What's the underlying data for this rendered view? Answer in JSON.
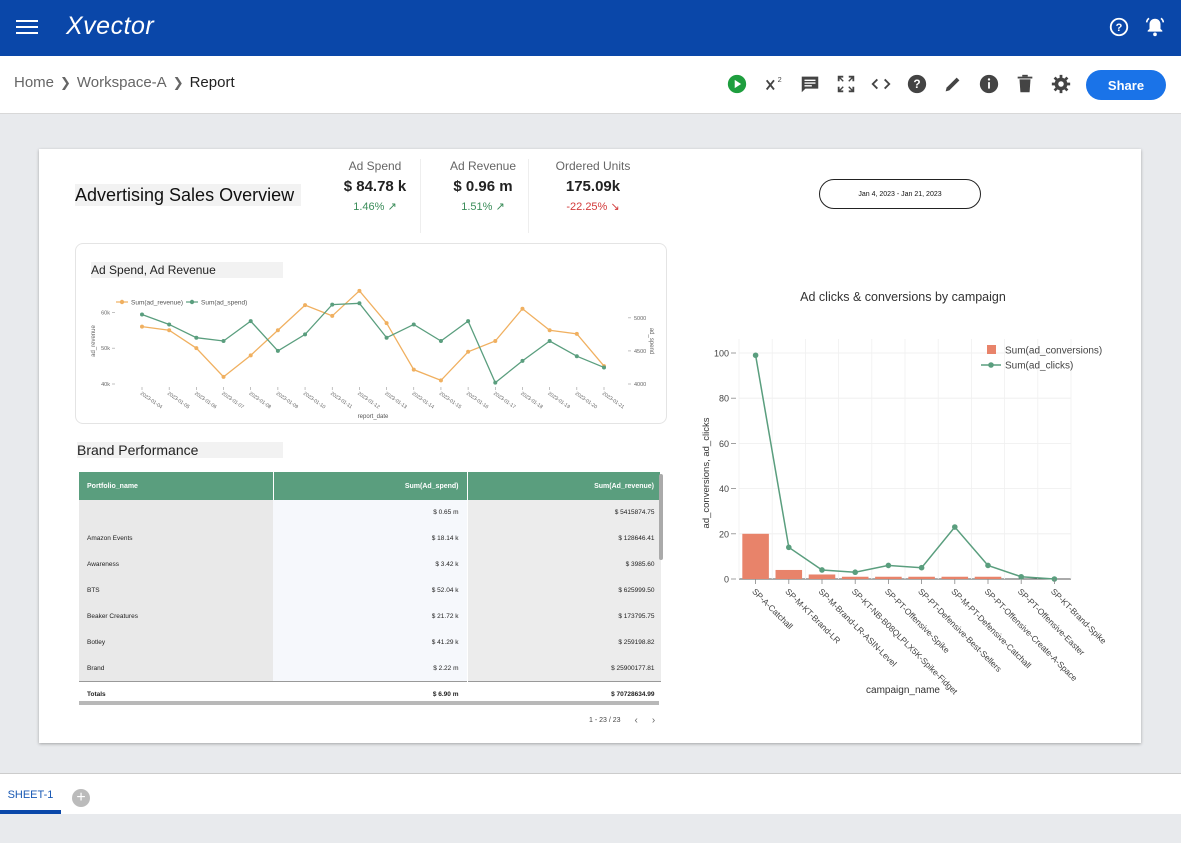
{
  "app": {
    "name": "Xvector"
  },
  "breadcrumb": {
    "home": "Home",
    "workspace": "Workspace-A",
    "current": "Report"
  },
  "toolbar": {
    "share_label": "Share",
    "icons": [
      "run-icon",
      "superscript-icon",
      "comment-icon",
      "fullscreen-icon",
      "code-icon",
      "help-icon",
      "edit-icon",
      "info-icon",
      "delete-icon",
      "settings-icon"
    ]
  },
  "report": {
    "title": "Advertising Sales Overview",
    "date_range": "Jan 4, 2023 - Jan 21, 2023",
    "kpis": [
      {
        "label": "Ad Spend",
        "value": "$ 84.78 k",
        "change": "1.46%",
        "trend": "up"
      },
      {
        "label": "Ad Revenue",
        "value": "$ 0.96 m",
        "change": "1.51%",
        "trend": "up"
      },
      {
        "label": "Ordered Units",
        "value": "175.09k",
        "change": "-22.25%",
        "trend": "down"
      }
    ]
  },
  "line_chart": {
    "card_title": "Ad Spend, Ad Revenue",
    "xlabel": "report_date",
    "ylabel_left": "ad_revenue",
    "ylabel_right": "ad_spend",
    "left_ticks": [
      "60k",
      "50k",
      "40k"
    ],
    "right_ticks": [
      "5000",
      "4500",
      "4000"
    ],
    "legend": [
      "Sum(ad_revenue)",
      "Sum(ad_spend)"
    ],
    "dates": [
      "2023-01-04",
      "2023-01-05",
      "2023-01-06",
      "2023-01-07",
      "2023-01-08",
      "2023-01-09",
      "2023-01-10",
      "2023-01-11",
      "2023-01-12",
      "2023-01-13",
      "2023-01-14",
      "2023-01-15",
      "2023-01-16",
      "2023-01-17",
      "2023-01-18",
      "2023-01-19",
      "2023-01-20",
      "2023-01-21"
    ]
  },
  "bar_chart": {
    "title": "Ad clicks & conversions by campaign",
    "xlabel": "campaign_name",
    "ylabel": "ad_conversions, ad_clicks",
    "y_ticks": [
      "100",
      "80",
      "60",
      "40",
      "20",
      "0"
    ],
    "legend": [
      "Sum(ad_conversions)",
      "Sum(ad_clicks)"
    ]
  },
  "table": {
    "title": "Brand Performance",
    "columns": [
      "Portfolio_name",
      "Sum(Ad_spend)",
      "Sum(Ad_revenue)"
    ],
    "rows": [
      [
        "",
        "$ 0.65 m",
        "$ 5415874.75"
      ],
      [
        "Amazon Events",
        "$ 18.14 k",
        "$ 128646.41"
      ],
      [
        "Awareness",
        "$ 3.42 k",
        "$ 3985.60"
      ],
      [
        "BTS",
        "$ 52.04 k",
        "$ 625999.50"
      ],
      [
        "Beaker Creatures",
        "$ 21.72 k",
        "$ 173795.75"
      ],
      [
        "Botley",
        "$ 41.29 k",
        "$ 259198.82"
      ],
      [
        "Brand",
        "$ 2.22 m",
        "$ 25900177.81"
      ]
    ],
    "totals": [
      "Totals",
      "$ 6.90 m",
      "$ 70728634.99"
    ],
    "pager": "1 - 23 / 23"
  },
  "sheets": {
    "active": "SHEET-1"
  },
  "chart_data": [
    {
      "type": "line",
      "title": "Ad Spend, Ad Revenue",
      "xlabel": "report_date",
      "ylabel": "ad_revenue",
      "x": [
        "2023-01-04",
        "2023-01-05",
        "2023-01-06",
        "2023-01-07",
        "2023-01-08",
        "2023-01-09",
        "2023-01-10",
        "2023-01-11",
        "2023-01-12",
        "2023-01-13",
        "2023-01-14",
        "2023-01-15",
        "2023-01-16",
        "2023-01-17",
        "2023-01-18",
        "2023-01-19",
        "2023-01-20",
        "2023-01-21"
      ],
      "series": [
        {
          "name": "Sum(ad_revenue)",
          "axis": "left",
          "color": "#f0b060",
          "values": [
            56000,
            55000,
            50000,
            42000,
            48000,
            55000,
            62000,
            59000,
            66000,
            57000,
            44000,
            41000,
            49000,
            52000,
            61000,
            55000,
            54000,
            45000
          ]
        },
        {
          "name": "Sum(ad_spend)",
          "axis": "right",
          "color": "#5a9e7e",
          "values": [
            5050,
            4900,
            4700,
            4650,
            4950,
            4500,
            4750,
            5200,
            5220,
            4700,
            4900,
            4650,
            4950,
            4020,
            4350,
            4650,
            4420,
            4250
          ]
        }
      ],
      "ylim_left": [
        40000,
        64000
      ],
      "ylim_right": [
        4000,
        5300
      ]
    },
    {
      "type": "bar",
      "title": "Ad clicks & conversions by campaign",
      "xlabel": "campaign_name",
      "ylabel": "ad_conversions, ad_clicks",
      "categories": [
        "SP-A-Catchall",
        "SP-M-KT-Brand-LR",
        "SP-M-Brand-LR-ASIN-Level",
        "SP-KT-NB-B08QLPLX5K-Spike-Fidget",
        "SP-PT-Offensive-Spike",
        "SP-PT-Defensive-Best-Sellers",
        "SP-M-PT-Defensive-Catchall",
        "SP-PT-Offensive-Create-A-Space",
        "SP-PT-Offensive-Easter",
        "SP-KT-Brand-Spike"
      ],
      "series": [
        {
          "name": "Sum(ad_conversions)",
          "kind": "bar",
          "color": "#e8836a",
          "values": [
            20,
            4,
            2,
            1,
            1,
            1,
            1,
            1,
            0,
            0
          ]
        },
        {
          "name": "Sum(ad_clicks)",
          "kind": "line",
          "color": "#5a9e7e",
          "values": [
            99,
            14,
            4,
            3,
            6,
            5,
            23,
            6,
            1,
            0
          ]
        }
      ],
      "ylim": [
        0,
        105
      ]
    }
  ]
}
